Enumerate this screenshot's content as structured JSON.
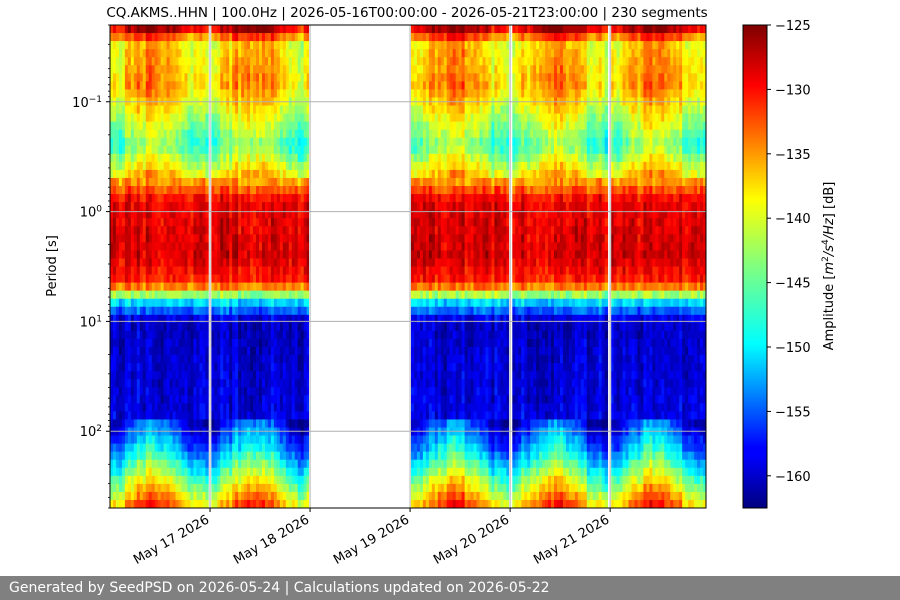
{
  "chart_data": {
    "type": "heatmap",
    "title": "CQ.AKMS..HHN | 100.0Hz | 2026-05-16T00:00:00 - 2026-05-21T23:00:00 | 230 segments",
    "ylabel": "Period [s]",
    "y_scale": "log",
    "y_inverted": true,
    "ylim": [
      0.02,
      500
    ],
    "y_ticks": [
      {
        "value": 0.1,
        "base": "10",
        "exp": "−1"
      },
      {
        "value": 1,
        "base": "10",
        "exp": "0"
      },
      {
        "value": 10,
        "base": "10",
        "exp": "1"
      },
      {
        "value": 100,
        "base": "10",
        "exp": "2"
      }
    ],
    "xlim": [
      "2026-05-16T00:00:00",
      "2026-05-21T23:00:00"
    ],
    "x_ticks": [
      "May 17 2026",
      "May 18 2026",
      "May 19 2026",
      "May 20 2026",
      "May 21 2026"
    ],
    "data_gaps": [
      {
        "start": "2026-05-16T23:45:00",
        "end": "2026-05-17T00:15:00"
      },
      {
        "start": "2026-05-17T23:45:00",
        "end": "2026-05-19T00:00:00"
      },
      {
        "start": "2026-05-19T23:45:00",
        "end": "2026-05-20T00:15:00"
      },
      {
        "start": "2026-05-20T23:45:00",
        "end": "2026-05-21T00:15:00"
      }
    ],
    "grid": true,
    "colorbar": {
      "label_parts": [
        "Amplitude [",
        "m",
        "2",
        "/",
        "s",
        "4",
        "/",
        "Hz",
        "] [dB]"
      ],
      "colormap": "jet",
      "range": [
        -162.5,
        -125
      ],
      "ticks": [
        -125,
        -130,
        -135,
        -140,
        -145,
        -150,
        -155,
        -160
      ],
      "tick_labels": [
        "−125",
        "−130",
        "−135",
        "−140",
        "−145",
        "−150",
        "−155",
        "−160"
      ]
    },
    "amplitude_profile_by_period": [
      {
        "period": 0.02,
        "db": -125
      },
      {
        "period": 0.03,
        "db": -138
      },
      {
        "period": 0.07,
        "db": -136
      },
      {
        "period": 0.25,
        "db": -145
      },
      {
        "period": 0.45,
        "db": -138
      },
      {
        "period": 0.8,
        "db": -129
      },
      {
        "period": 2.5,
        "db": -128
      },
      {
        "period": 4.5,
        "db": -131
      },
      {
        "period": 6.5,
        "db": -149
      },
      {
        "period": 10,
        "db": -160
      },
      {
        "period": 70,
        "db": -159
      },
      {
        "period": 150,
        "db": -151
      },
      {
        "period": 500,
        "db": -134
      }
    ]
  },
  "footer": {
    "text": "Generated by SeedPSD on 2026-05-24 | Calculations updated on 2026-05-22"
  }
}
